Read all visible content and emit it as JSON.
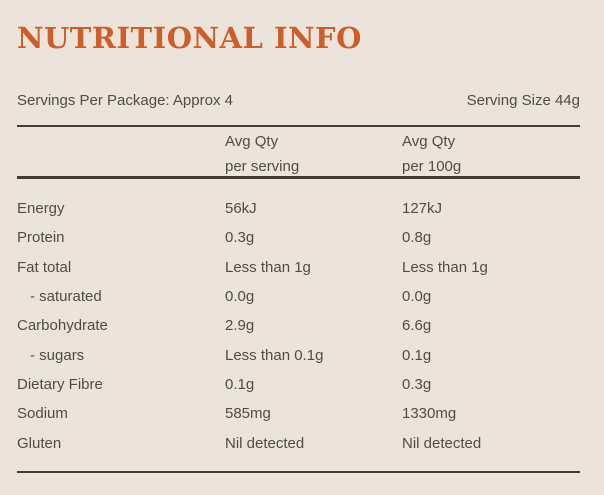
{
  "page": {
    "title": "NUTRITIONAL INFO"
  },
  "meta": {
    "servings_per_package": "Servings Per Package: Approx 4",
    "serving_size": "Serving Size 44g"
  },
  "table": {
    "type": "table",
    "columns": [
      {
        "line1": "Avg Qty",
        "line2": "per serving"
      },
      {
        "line1": "Avg Qty",
        "line2": "per 100g"
      }
    ],
    "rows": [
      {
        "label": "Energy",
        "indent": false,
        "per_serving": "56kJ",
        "per_100g": "127kJ"
      },
      {
        "label": "Protein",
        "indent": false,
        "per_serving": "0.3g",
        "per_100g": "0.8g"
      },
      {
        "label": "Fat total",
        "indent": false,
        "per_serving": "Less than 1g",
        "per_100g": "Less than 1g"
      },
      {
        "label": "- saturated",
        "indent": true,
        "per_serving": "0.0g",
        "per_100g": "0.0g"
      },
      {
        "label": "Carbohydrate",
        "indent": false,
        "per_serving": "2.9g",
        "per_100g": "6.6g"
      },
      {
        "label": "- sugars",
        "indent": true,
        "per_serving": "Less than 0.1g",
        "per_100g": "0.1g"
      },
      {
        "label": "Dietary Fibre",
        "indent": false,
        "per_serving": "0.1g",
        "per_100g": "0.3g"
      },
      {
        "label": "Sodium",
        "indent": false,
        "per_serving": "585mg",
        "per_100g": "1330mg"
      },
      {
        "label": "Gluten",
        "indent": false,
        "per_serving": "Nil detected",
        "per_100g": "Nil detected"
      }
    ]
  },
  "colors": {
    "background": "#ece4da",
    "accent": "#cc5e2a",
    "text": "#4f4c45",
    "rule": "#413e38"
  }
}
